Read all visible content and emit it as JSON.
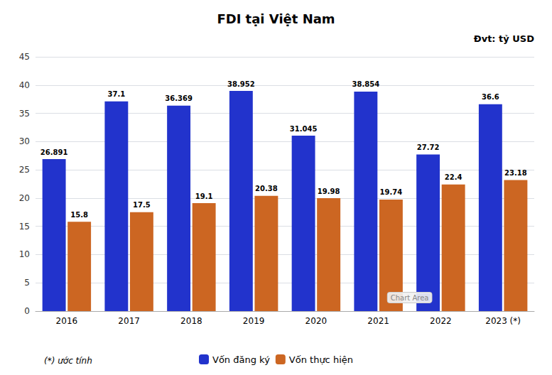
{
  "chart_data": {
    "type": "bar",
    "title": "FDI tại Việt Nam",
    "categories": [
      "2016",
      "2017",
      "2018",
      "2019",
      "2020",
      "2021",
      "2022",
      "2023 (*)"
    ],
    "series": [
      {
        "name": "Vốn đăng ký",
        "color": "#2233CC",
        "values": [
          26.891,
          37.1,
          36.369,
          38.952,
          31.045,
          38.854,
          27.72,
          36.6
        ]
      },
      {
        "name": "Vốn thực hiện",
        "color": "#CC6622",
        "values": [
          15.8,
          17.5,
          19.1,
          20.38,
          19.98,
          19.74,
          22.4,
          23.18
        ]
      }
    ],
    "ylim": [
      0,
      45
    ],
    "yticks": [
      0,
      5,
      10,
      15,
      20,
      25,
      30,
      35,
      40,
      45
    ],
    "grid": true,
    "legend": "bottom",
    "data_labels": true,
    "annotations": [
      "Đvt: tỷ USD",
      "Chart Area",
      "(*) ước tính"
    ]
  }
}
